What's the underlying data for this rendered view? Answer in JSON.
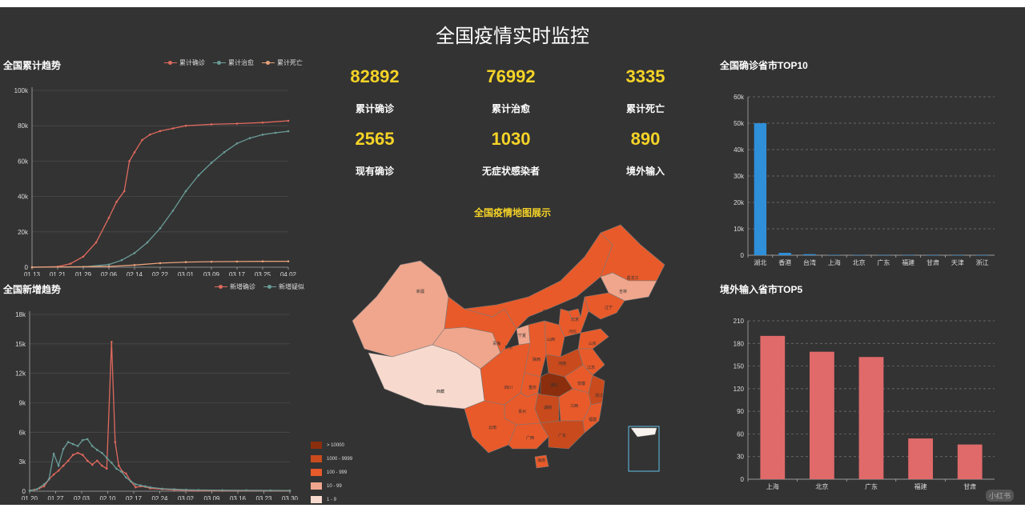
{
  "page": {
    "title": "全国疫情实时监控",
    "watermark": "小红书"
  },
  "panels": {
    "cumulative": {
      "title": "全国累计趋势"
    },
    "daily": {
      "title": "全国新增趋势"
    },
    "top10": {
      "title": "全国确诊省市TOP10"
    },
    "top5": {
      "title": "境外输入省市TOP5"
    },
    "map": {
      "title": "全国疫情地图展示"
    }
  },
  "kpis": [
    {
      "value": "82892",
      "label": "累计确诊"
    },
    {
      "value": "76992",
      "label": "累计治愈"
    },
    {
      "value": "3335",
      "label": "累计死亡"
    },
    {
      "value": "2565",
      "label": "现有确诊"
    },
    {
      "value": "1030",
      "label": "无症状感染者"
    },
    {
      "value": "890",
      "label": "境外输入"
    }
  ],
  "colors": {
    "confirmed": "#e0695e",
    "healed": "#6a9c98",
    "dead": "#e8a07a",
    "suspect": "#6a9c98",
    "bar_blue": "#2f8fd8",
    "bar_red": "#e0696a",
    "accent_yellow": "#f5d327",
    "background": "#333333"
  },
  "chart_data": [
    {
      "id": "cumulative",
      "type": "line",
      "title": "全国累计趋势",
      "x_ticks": [
        "01.13",
        "01.21",
        "01.29",
        "02.06",
        "02.14",
        "02.22",
        "03.01",
        "03.09",
        "03.17",
        "03.25",
        "04.02"
      ],
      "y_ticks": [
        "0",
        "20k",
        "40k",
        "60k",
        "80k",
        "100k"
      ],
      "ylim": [
        0,
        100000
      ],
      "grid": true,
      "legend_position": "top-right",
      "series": [
        {
          "name": "累计确诊",
          "color": "#e0695e",
          "x_index": [
            0,
            1,
            1.5,
            2,
            2.5,
            3,
            3.3,
            3.6,
            3.8,
            4,
            4.3,
            4.6,
            5,
            5.5,
            6,
            7,
            8,
            9,
            10
          ],
          "values": [
            0,
            300,
            2000,
            6000,
            14000,
            28000,
            37000,
            43000,
            60000,
            65000,
            72000,
            75000,
            77000,
            78500,
            80000,
            80800,
            81200,
            81800,
            82800
          ]
        },
        {
          "name": "累计治愈",
          "color": "#6a9c98",
          "x_index": [
            0,
            2,
            3,
            3.5,
            4,
            4.5,
            5,
            5.5,
            6,
            6.5,
            7,
            7.5,
            8,
            8.5,
            9,
            9.5,
            10
          ],
          "values": [
            0,
            200,
            1500,
            4000,
            8000,
            14000,
            22000,
            32000,
            43000,
            52000,
            59000,
            65000,
            70000,
            73000,
            75000,
            76000,
            76900
          ]
        },
        {
          "name": "累计死亡",
          "color": "#e8a07a",
          "x_index": [
            0,
            3,
            4,
            5,
            6,
            7,
            8,
            9,
            10
          ],
          "values": [
            0,
            400,
            1200,
            2300,
            2900,
            3100,
            3200,
            3300,
            3335
          ]
        }
      ]
    },
    {
      "id": "daily",
      "type": "line",
      "title": "全国新增趋势",
      "x_ticks": [
        "01.20",
        "01.27",
        "02.03",
        "02.10",
        "02.17",
        "02.24",
        "03.02",
        "03.09",
        "03.16",
        "03.23",
        "03.30"
      ],
      "y_ticks": [
        "0",
        "3k",
        "6k",
        "9k",
        "12k",
        "15k",
        "18k"
      ],
      "ylim": [
        0,
        18000
      ],
      "grid": true,
      "legend_position": "top-right",
      "series": [
        {
          "name": "新增确诊",
          "color": "#e0695e",
          "points": [
            [
              0,
              80
            ],
            [
              0.2,
              150
            ],
            [
              0.4,
              300
            ],
            [
              0.6,
              500
            ],
            [
              0.8,
              1200
            ],
            [
              1.0,
              1700
            ],
            [
              1.2,
              2100
            ],
            [
              1.4,
              2600
            ],
            [
              1.6,
              3100
            ],
            [
              1.8,
              3700
            ],
            [
              2.0,
              3900
            ],
            [
              2.2,
              3700
            ],
            [
              2.4,
              3100
            ],
            [
              2.6,
              2700
            ],
            [
              2.8,
              3100
            ],
            [
              3.0,
              2600
            ],
            [
              3.2,
              2300
            ],
            [
              3.4,
              15200
            ],
            [
              3.55,
              5000
            ],
            [
              3.7,
              2600
            ],
            [
              3.85,
              2000
            ],
            [
              4.0,
              1800
            ],
            [
              4.2,
              1000
            ],
            [
              4.4,
              400
            ],
            [
              4.6,
              500
            ],
            [
              4.8,
              450
            ],
            [
              5.0,
              300
            ],
            [
              5.5,
              200
            ],
            [
              6.0,
              120
            ],
            [
              6.5,
              80
            ],
            [
              7,
              50
            ],
            [
              8,
              40
            ],
            [
              9,
              60
            ],
            [
              10,
              50
            ],
            [
              10.8,
              40
            ]
          ]
        },
        {
          "name": "新增疑似",
          "color": "#6a9c98",
          "points": [
            [
              0,
              60
            ],
            [
              0.3,
              200
            ],
            [
              0.6,
              700
            ],
            [
              0.8,
              1200
            ],
            [
              1.0,
              3800
            ],
            [
              1.2,
              2600
            ],
            [
              1.4,
              4300
            ],
            [
              1.6,
              5000
            ],
            [
              1.8,
              4800
            ],
            [
              2.0,
              4600
            ],
            [
              2.2,
              5200
            ],
            [
              2.4,
              5300
            ],
            [
              2.6,
              4600
            ],
            [
              2.8,
              4200
            ],
            [
              3.0,
              3900
            ],
            [
              3.2,
              3400
            ],
            [
              3.4,
              2900
            ],
            [
              3.6,
              2300
            ],
            [
              3.8,
              2000
            ],
            [
              4.0,
              1400
            ],
            [
              4.2,
              1000
            ],
            [
              4.4,
              700
            ],
            [
              4.6,
              600
            ],
            [
              4.8,
              500
            ],
            [
              5.0,
              400
            ],
            [
              5.5,
              250
            ],
            [
              6.0,
              200
            ],
            [
              6.5,
              150
            ],
            [
              7,
              120
            ],
            [
              8,
              100
            ],
            [
              9,
              90
            ],
            [
              10,
              80
            ],
            [
              10.8,
              70
            ]
          ]
        }
      ]
    },
    {
      "id": "top10",
      "type": "bar",
      "title": "全国确诊省市TOP10",
      "categories": [
        "湖北",
        "香港",
        "台湾",
        "上海",
        "北京",
        "广东",
        "福建",
        "甘肃",
        "天津",
        "浙江"
      ],
      "values": [
        50000,
        900,
        400,
        150,
        120,
        80,
        30,
        20,
        10,
        10
      ],
      "y_ticks": [
        "0",
        "10k",
        "20k",
        "30k",
        "40k",
        "50k",
        "60k"
      ],
      "ylim": [
        0,
        60000
      ],
      "grid": true
    },
    {
      "id": "top5",
      "type": "bar",
      "title": "境外输入省市TOP5",
      "categories": [
        "上海",
        "北京",
        "广东",
        "福建",
        "甘肃"
      ],
      "values": [
        190,
        169,
        162,
        54,
        46
      ],
      "y_ticks": [
        "0",
        "30",
        "60",
        "90",
        "120",
        "150",
        "180",
        "210"
      ],
      "ylim": [
        0,
        210
      ],
      "grid": true
    }
  ],
  "map": {
    "visual_map": [
      {
        "label": "> 10000",
        "color": "#8b2e0e"
      },
      {
        "label": "1000 - 9999",
        "color": "#c94a1c"
      },
      {
        "label": "100 - 999",
        "color": "#e85a2a"
      },
      {
        "label": "10 - 99",
        "color": "#f0a68c"
      },
      {
        "label": "1 - 9",
        "color": "#f8d9ce"
      }
    ],
    "regions": [
      {
        "name": "新疆",
        "color": "#f0a68c"
      },
      {
        "name": "西藏",
        "color": "#f8d9ce"
      },
      {
        "name": "青海",
        "color": "#f0a68c"
      },
      {
        "name": "甘肃",
        "color": "#e85a2a"
      },
      {
        "name": "内蒙古",
        "color": "#e85a2a"
      },
      {
        "name": "黑龙江",
        "color": "#e85a2a"
      },
      {
        "name": "吉林",
        "color": "#f0a68c"
      },
      {
        "name": "辽宁",
        "color": "#e85a2a"
      },
      {
        "name": "北京",
        "color": "#e85a2a"
      },
      {
        "name": "河北",
        "color": "#e85a2a"
      },
      {
        "name": "山西",
        "color": "#e85a2a"
      },
      {
        "name": "山东",
        "color": "#e85a2a"
      },
      {
        "name": "宁夏",
        "color": "#f0a68c"
      },
      {
        "name": "陕西",
        "color": "#e85a2a"
      },
      {
        "name": "河南",
        "color": "#c94a1c"
      },
      {
        "name": "江苏",
        "color": "#e85a2a"
      },
      {
        "name": "安徽",
        "color": "#e85a2a"
      },
      {
        "name": "四川",
        "color": "#e85a2a"
      },
      {
        "name": "湖北",
        "color": "#8b2e0e"
      },
      {
        "name": "重庆",
        "color": "#e85a2a"
      },
      {
        "name": "浙江",
        "color": "#c94a1c"
      },
      {
        "name": "湖南",
        "color": "#c94a1c"
      },
      {
        "name": "江西",
        "color": "#e85a2a"
      },
      {
        "name": "贵州",
        "color": "#e85a2a"
      },
      {
        "name": "福建",
        "color": "#e85a2a"
      },
      {
        "name": "云南",
        "color": "#e85a2a"
      },
      {
        "name": "广西",
        "color": "#e85a2a"
      },
      {
        "name": "广东",
        "color": "#c94a1c"
      },
      {
        "name": "海南",
        "color": "#e85a2a"
      }
    ]
  }
}
